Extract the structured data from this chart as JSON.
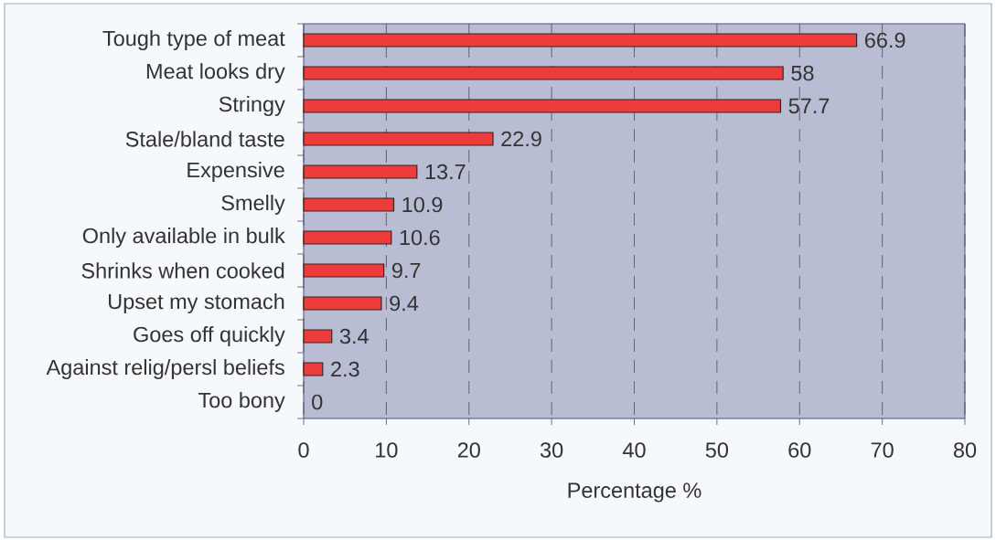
{
  "chart_data": {
    "type": "bar",
    "orientation": "horizontal",
    "xlabel": "Percentage %",
    "categories": [
      "Tough type of meat",
      "Meat looks dry",
      "Stringy",
      "Stale/bland taste",
      "Expensive",
      "Smelly",
      "Only available in bulk",
      "Shrinks when cooked",
      "Upset my stomach",
      "Goes off quickly",
      "Against relig/persl beliefs",
      "Too bony"
    ],
    "values": [
      66.9,
      58,
      57.7,
      22.9,
      13.7,
      10.9,
      10.6,
      9.7,
      9.4,
      3.4,
      2.3,
      0
    ],
    "color": "#ee3b3b",
    "xlim": [
      0,
      80
    ],
    "xticks": [
      0,
      10,
      20,
      30,
      40,
      50,
      60,
      70,
      80
    ],
    "grid": "x",
    "data_labels": true
  }
}
